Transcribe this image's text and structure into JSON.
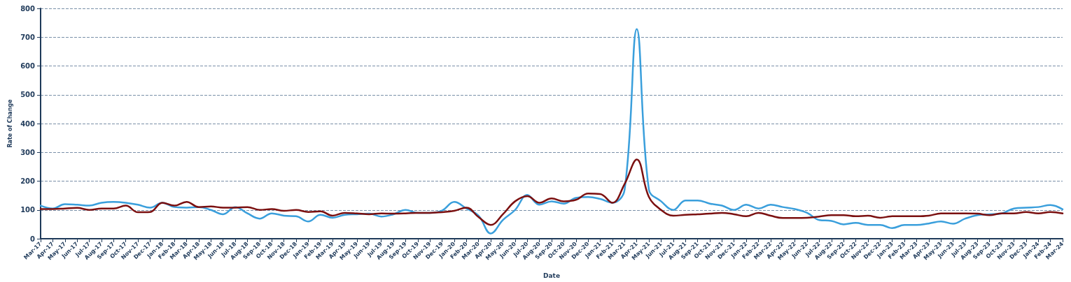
{
  "chart_data": {
    "type": "line",
    "xlabel": "Date",
    "ylabel": "Rate of Change",
    "categories": [
      "Mar-17",
      "Apr-17",
      "May-17",
      "Jun-17",
      "Jul-17",
      "Aug-17",
      "Sep-17",
      "Oct-17",
      "Nov-17",
      "Dec-17",
      "Jan-18",
      "Feb-18",
      "Mar-18",
      "Apr-18",
      "May-18",
      "Jun-18",
      "Jul-18",
      "Aug-18",
      "Sep-18",
      "Oct-18",
      "Nov-18",
      "Dec-18",
      "Jan-19",
      "Feb-19",
      "Mar-19",
      "Apr-19",
      "May-19",
      "Jun-19",
      "Jul-19",
      "Aug-19",
      "Sep-19",
      "Oct-19",
      "Nov-19",
      "Dec-19",
      "Jan-20",
      "Feb-20",
      "Mar-20",
      "Apr-20",
      "May-20",
      "Jun-20",
      "Jul-20",
      "Aug-20",
      "Sep-20",
      "Oct-20",
      "Nov-20",
      "Dec-20",
      "Jan-21",
      "Feb-21",
      "Mar-21",
      "Apr-21",
      "May-21",
      "Jun-21",
      "Jul-21",
      "Aug-21",
      "Sep-21",
      "Oct-21",
      "Nov-21",
      "Dec-21",
      "Jan-22",
      "Feb-22",
      "Mar-22",
      "Apr-22",
      "May-22",
      "Jun-22",
      "Jul-22",
      "Aug-22",
      "Sep-22",
      "Oct-22",
      "Nov-22",
      "Dec-22",
      "Jan-23",
      "Feb-23",
      "Mar-23",
      "Apr-23",
      "May-23",
      "Jun-23",
      "Jul-23",
      "Aug-23",
      "Sep-23",
      "Oct-23",
      "Nov-23",
      "Dec-23",
      "Jan-24",
      "Feb-24",
      "Mar-24"
    ],
    "series": [
      {
        "color": "#3a9fdc",
        "values": [
          115,
          105,
          120,
          118,
          115,
          125,
          128,
          125,
          118,
          108,
          125,
          110,
          108,
          110,
          100,
          85,
          110,
          88,
          70,
          88,
          80,
          78,
          60,
          83,
          73,
          83,
          85,
          87,
          77,
          85,
          100,
          90,
          90,
          98,
          128,
          105,
          80,
          18,
          65,
          100,
          152,
          118,
          130,
          122,
          142,
          145,
          138,
          125,
          170,
          728,
          170,
          130,
          100,
          133,
          133,
          122,
          115,
          100,
          118,
          105,
          118,
          110,
          103,
          90,
          65,
          62,
          50,
          55,
          48,
          48,
          37,
          48,
          48,
          53,
          60,
          52,
          70,
          82,
          85,
          88,
          105,
          108,
          110,
          117,
          102
        ]
      },
      {
        "color": "#7b1010",
        "values": [
          103,
          103,
          105,
          107,
          100,
          105,
          105,
          115,
          92,
          93,
          125,
          115,
          128,
          110,
          112,
          108,
          108,
          110,
          100,
          103,
          97,
          100,
          93,
          95,
          80,
          90,
          88,
          85,
          88,
          87,
          88,
          90,
          90,
          92,
          97,
          108,
          75,
          48,
          85,
          130,
          148,
          125,
          140,
          130,
          135,
          157,
          155,
          125,
          190,
          275,
          145,
          100,
          80,
          83,
          85,
          87,
          90,
          85,
          78,
          90,
          80,
          72,
          72,
          73,
          77,
          82,
          82,
          78,
          80,
          73,
          78,
          78,
          78,
          80,
          88,
          88,
          88,
          87,
          82,
          88,
          88,
          93,
          88,
          93,
          88
        ]
      }
    ],
    "ylim": [
      0,
      800
    ],
    "yticks": [
      0,
      100,
      200,
      300,
      400,
      500,
      600,
      700,
      800
    ],
    "grid": "y",
    "marker": "none",
    "line_style": "solid"
  }
}
